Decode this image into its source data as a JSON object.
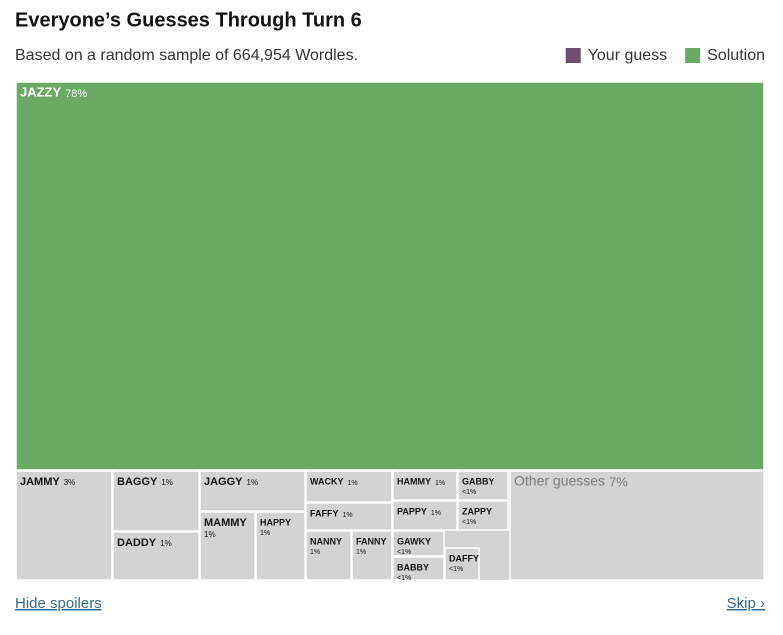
{
  "chart_data": {
    "type": "treemap",
    "title": "Everyone’s Guesses Through Turn 6",
    "subtitle": "Based on a random sample of 664,954 Wordles.",
    "legend": [
      {
        "name": "Your guess",
        "color": "#6c4f6e"
      },
      {
        "name": "Solution",
        "color": "#6aaa64"
      }
    ],
    "categories": [
      "JAZZY",
      "JAMMY",
      "BAGGY",
      "DADDY",
      "JAGGY",
      "MAMMY",
      "HAPPY",
      "WACKY",
      "FAFFY",
      "NANNY",
      "FANNY",
      "HAMMY",
      "PAPPY",
      "GABBY",
      "ZAPPY",
      "GAWKY",
      "BABBY",
      "DAFFY",
      "Other guesses"
    ],
    "values": [
      78,
      3,
      1,
      1,
      1,
      1,
      1,
      1,
      1,
      1,
      1,
      1,
      1,
      0.5,
      0.5,
      0.5,
      0.5,
      0.5,
      7
    ],
    "value_labels": [
      "78%",
      "3%",
      "1%",
      "1%",
      "1%",
      "1%",
      "1%",
      "1%",
      "1%",
      "1%",
      "1%",
      "1%",
      "1%",
      "<1%",
      "<1%",
      "<1%",
      "<1%",
      "<1%",
      "7%"
    ],
    "colors": [
      "#6aaa64",
      "#d3d3d3",
      "#d3d3d3",
      "#d3d3d3",
      "#d3d3d3",
      "#d3d3d3",
      "#d3d3d3",
      "#d3d3d3",
      "#d3d3d3",
      "#d3d3d3",
      "#d3d3d3",
      "#d3d3d3",
      "#d3d3d3",
      "#d3d3d3",
      "#d3d3d3",
      "#d3d3d3",
      "#d3d3d3",
      "#d3d3d3",
      "#d3d3d3"
    ]
  },
  "footer": {
    "left_link": "Hide spoilers",
    "right_link": "Skip ›"
  }
}
